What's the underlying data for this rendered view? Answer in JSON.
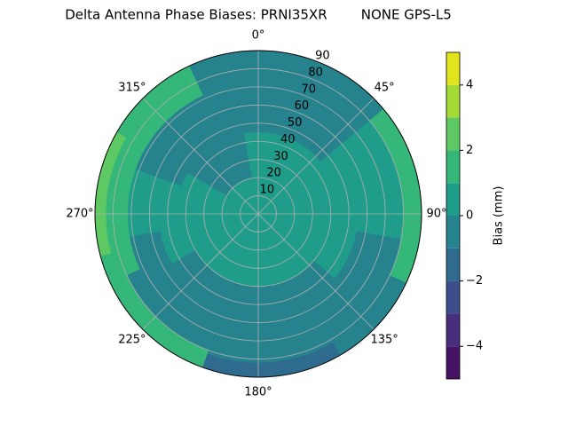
{
  "chart_data": {
    "type": "polar-contour",
    "title": "Delta Antenna Phase Biases: PRNI35XR        NONE GPS-L5",
    "thetaticks": [
      {
        "value": 0,
        "label": "0°"
      },
      {
        "value": 45,
        "label": "45°"
      },
      {
        "value": 90,
        "label": "90°"
      },
      {
        "value": 135,
        "label": "135°"
      },
      {
        "value": 180,
        "label": "180°"
      },
      {
        "value": 225,
        "label": "225°"
      },
      {
        "value": 270,
        "label": "270°"
      },
      {
        "value": 315,
        "label": "315°"
      }
    ],
    "rlim": [
      0,
      90
    ],
    "rticks": [
      10,
      20,
      30,
      40,
      50,
      60,
      70,
      80,
      90
    ],
    "grid": true,
    "levels": [
      -5,
      -4,
      -3,
      -2,
      -1,
      0,
      1,
      2,
      3,
      4,
      5
    ],
    "colors": [
      "#471365",
      "#472f7d",
      "#3c4f8a",
      "#2f6b8e",
      "#26838e",
      "#1f9d8a",
      "#35b779",
      "#5ec962",
      "#a5db36",
      "#e1e41d"
    ],
    "colorbar_label": "Bias (mm)",
    "colorbar_ticks": [
      {
        "value": -4,
        "label": "−4"
      },
      {
        "value": -2,
        "label": "−2"
      },
      0,
      2,
      4
    ]
  }
}
